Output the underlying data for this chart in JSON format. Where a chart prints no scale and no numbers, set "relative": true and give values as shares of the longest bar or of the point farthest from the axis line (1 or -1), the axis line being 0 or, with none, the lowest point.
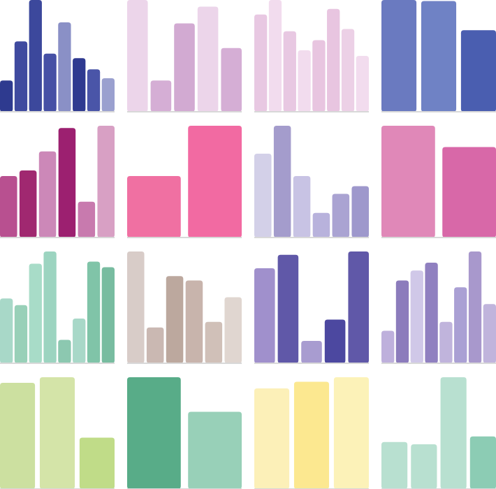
{
  "chart_data": [
    {
      "type": "bar",
      "relative": true,
      "categories": [
        null,
        null,
        null,
        null,
        null,
        null,
        null,
        null
      ],
      "values": [
        0.28,
        0.63,
        1,
        0.52,
        0.8,
        0.48,
        0.38,
        0.3
      ],
      "colors": [
        "#2e3a8f",
        "#3f4a9f",
        "#3c489c",
        "#4650a5",
        "#8a90c6",
        "#2f3a90",
        "#4a55a8",
        "#9aa0cf"
      ]
    },
    {
      "type": "bar",
      "relative": true,
      "categories": [
        null,
        null,
        null,
        null,
        null
      ],
      "values": [
        1,
        0.28,
        0.79,
        0.94,
        0.57
      ],
      "colors": [
        "#ecd5ea",
        "#d5aed5",
        "#d2aad2",
        "#ecd5ea",
        "#d5aed5"
      ]
    },
    {
      "type": "bar",
      "relative": true,
      "categories": [
        null,
        null,
        null,
        null,
        null,
        null,
        null,
        null
      ],
      "values": [
        0.87,
        1,
        0.72,
        0.55,
        0.64,
        0.92,
        0.74,
        0.5
      ],
      "colors": [
        "#e8c8e2",
        "#f2dcee",
        "#e8c8e2",
        "#f2dcee",
        "#e8c5e0",
        "#e8c5e0",
        "#ecd0e6",
        "#f2dcee"
      ]
    },
    {
      "type": "bar",
      "relative": true,
      "categories": [
        null,
        null,
        null
      ],
      "values": [
        1,
        0.99,
        0.73
      ],
      "colors": [
        "#6a7ac0",
        "#6f82c5",
        "#4a5eb0"
      ]
    },
    {
      "type": "bar",
      "relative": true,
      "categories": [
        null,
        null,
        null,
        null,
        null,
        null
      ],
      "values": [
        0.55,
        0.6,
        0.77,
        0.98,
        0.32,
        1
      ],
      "colors": [
        "#b85090",
        "#a02870",
        "#cc88b8",
        "#9c2070",
        "#c87aae",
        "#d8a0c4"
      ]
    },
    {
      "type": "bar",
      "relative": true,
      "categories": [
        null,
        null
      ],
      "values": [
        0.55,
        1
      ],
      "colors": [
        "#f070a2",
        "#f26aa2"
      ]
    },
    {
      "type": "bar",
      "relative": true,
      "categories": [
        null,
        null,
        null,
        null,
        null,
        null
      ],
      "values": [
        0.75,
        1,
        0.55,
        0.22,
        0.39,
        0.46
      ],
      "colors": [
        "#d3d0e8",
        "#a49ccc",
        "#c8c3e4",
        "#b8b2dc",
        "#aaa3d2",
        "#9e98cc"
      ]
    },
    {
      "type": "bar",
      "relative": true,
      "categories": [
        null,
        null
      ],
      "values": [
        1,
        0.81
      ],
      "colors": [
        "#e088b8",
        "#d868a8"
      ]
    },
    {
      "type": "bar",
      "relative": true,
      "categories": [
        null,
        null,
        null,
        null,
        null,
        null,
        null,
        null
      ],
      "values": [
        0.58,
        0.52,
        0.89,
        1,
        0.21,
        0.4,
        0.91,
        0.86
      ],
      "colors": [
        "#a8d8c8",
        "#98d0b8",
        "#a8dcc8",
        "#9cd4c0",
        "#8cc8b0",
        "#a8d8c8",
        "#80c4a8",
        "#78bca0"
      ]
    },
    {
      "type": "bar",
      "relative": true,
      "categories": [
        null,
        null,
        null,
        null,
        null,
        null
      ],
      "values": [
        1,
        0.32,
        0.78,
        0.74,
        0.37,
        0.59
      ],
      "colors": [
        "#d8ccc8",
        "#cab8b2",
        "#bca89e",
        "#c8b4ac",
        "#d0c0b8",
        "#e0d6d0"
      ]
    },
    {
      "type": "bar",
      "relative": true,
      "categories": [
        null,
        null,
        null,
        null,
        null
      ],
      "values": [
        0.85,
        0.97,
        0.2,
        0.39,
        1
      ],
      "colors": [
        "#a090cc",
        "#6058a8",
        "#a89cd0",
        "#4c48a0",
        "#6058a8"
      ]
    },
    {
      "type": "bar",
      "relative": true,
      "categories": [
        null,
        null,
        null,
        null,
        null,
        null,
        null,
        null
      ],
      "values": [
        0.29,
        0.74,
        0.83,
        0.9,
        0.37,
        0.68,
        1,
        0.53
      ],
      "colors": [
        "#beb0dc",
        "#8c7cbc",
        "#d0c8e8",
        "#9080c0",
        "#c0b4dc",
        "#aaa0d4",
        "#a898cc",
        "#c0b4dc"
      ]
    },
    {
      "type": "bar",
      "relative": true,
      "categories": [
        null,
        null,
        null
      ],
      "values": [
        0.95,
        1,
        0.46
      ],
      "colors": [
        "#cce0a0",
        "#d4e4a8",
        "#c0dc88"
      ]
    },
    {
      "type": "bar",
      "relative": true,
      "categories": [
        null,
        null
      ],
      "values": [
        1,
        0.69
      ],
      "colors": [
        "#58ac88",
        "#98d0b8"
      ]
    },
    {
      "type": "bar",
      "relative": true,
      "categories": [
        null,
        null,
        null
      ],
      "values": [
        0.9,
        0.96,
        1
      ],
      "colors": [
        "#fcf0b8",
        "#fce890",
        "#fcf2b8"
      ]
    },
    {
      "type": "bar",
      "relative": true,
      "categories": [
        null,
        null,
        null,
        null
      ],
      "values": [
        0.42,
        0.4,
        1,
        0.47
      ],
      "colors": [
        "#b8e0d0",
        "#b8e0d0",
        "#b8e0d0",
        "#8cccb4"
      ]
    }
  ]
}
